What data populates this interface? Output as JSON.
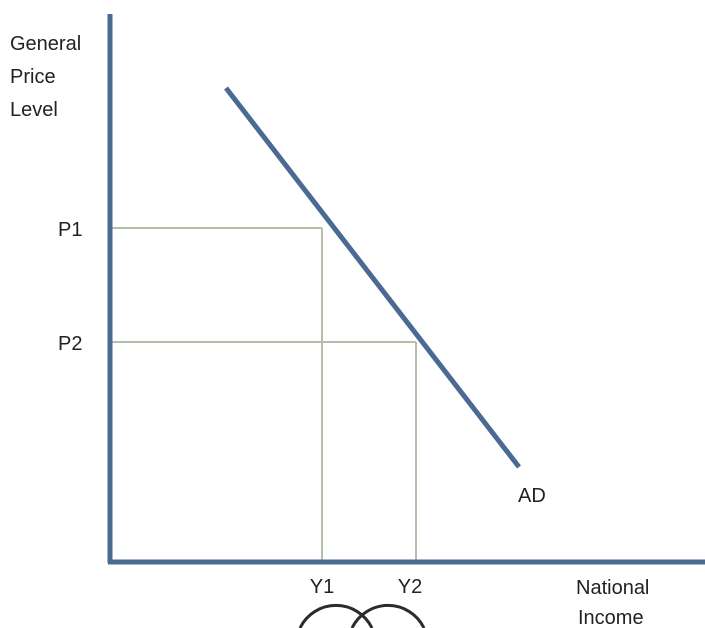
{
  "diagram": {
    "y_axis_label": [
      "General",
      "Price",
      "Level"
    ],
    "x_axis_label": [
      "National",
      "Income"
    ],
    "curve_label": "AD",
    "price_levels": [
      {
        "label": "P1"
      },
      {
        "label": "P2"
      }
    ],
    "incomes": [
      {
        "label": "Y1"
      },
      {
        "label": "Y2"
      }
    ],
    "colors": {
      "axis": "#4a6a94",
      "curve": "#4a6a94",
      "guide": "#b5bea8",
      "text": "#222222"
    }
  }
}
